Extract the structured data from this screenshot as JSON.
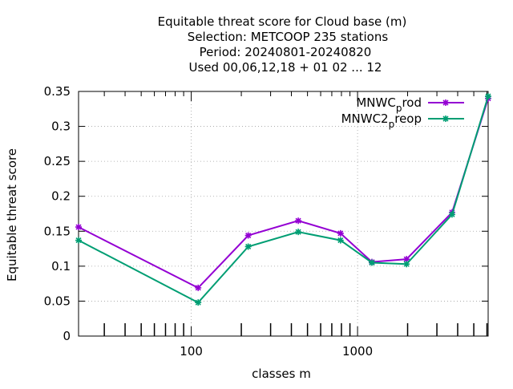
{
  "chart_data": {
    "type": "line",
    "title_lines": [
      "Equitable threat score  for Cloud base (m)",
      "Selection: METCOOP    235 stations",
      "Period: 20240801-20240820",
      "Used  00,06,12,18 + 01 02 ... 12"
    ],
    "xlabel": "classes m",
    "ylabel": "Equitable threat score",
    "x_scale": "log",
    "xlim": [
      21,
      6100
    ],
    "ylim": [
      0,
      0.35
    ],
    "x_ticks": [
      {
        "value": 100,
        "label": "100"
      },
      {
        "value": 1000,
        "label": "1000"
      }
    ],
    "y_ticks": [
      {
        "value": 0,
        "label": "0"
      },
      {
        "value": 0.05,
        "label": "0.05"
      },
      {
        "value": 0.1,
        "label": "0.1"
      },
      {
        "value": 0.15,
        "label": "0.15"
      },
      {
        "value": 0.2,
        "label": "0.2"
      },
      {
        "value": 0.25,
        "label": "0.25"
      },
      {
        "value": 0.3,
        "label": "0.3"
      },
      {
        "value": 0.35,
        "label": "0.35"
      }
    ],
    "grid": true,
    "legend_position": "top-right",
    "series": [
      {
        "legend_main": "MNWC",
        "legend_sub": "p",
        "legend_tail": "rod",
        "color": "#9400d3",
        "x": [
          21,
          110,
          220,
          440,
          790,
          1220,
          1970,
          3700,
          6100
        ],
        "y": [
          0.156,
          0.069,
          0.144,
          0.165,
          0.147,
          0.106,
          0.11,
          0.177,
          0.34
        ]
      },
      {
        "legend_main": "MNWC2",
        "legend_sub": "p",
        "legend_tail": "reop",
        "color": "#009e73",
        "x": [
          21,
          110,
          220,
          440,
          790,
          1220,
          1970,
          3700,
          6100
        ],
        "y": [
          0.137,
          0.048,
          0.128,
          0.149,
          0.137,
          0.105,
          0.103,
          0.174,
          0.343
        ]
      }
    ]
  }
}
